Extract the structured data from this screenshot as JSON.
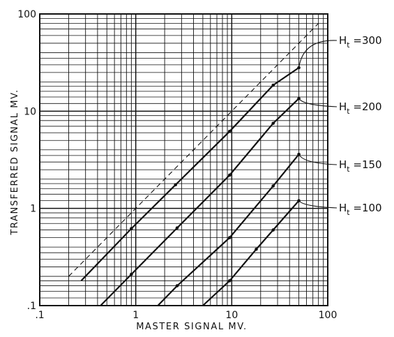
{
  "chart_data": {
    "type": "line",
    "xlabel": "MASTER SIGNAL MV.",
    "ylabel": "TRANSFERRED SIGNAL MV.",
    "x_scale": "log",
    "y_scale": "log",
    "xlim": [
      0.1,
      100
    ],
    "ylim": [
      0.1,
      100
    ],
    "grid": true,
    "x_ticks": [
      {
        "value": 0.1,
        "label": ".1"
      },
      {
        "value": 1,
        "label": "1"
      },
      {
        "value": 10,
        "label": "10"
      },
      {
        "value": 100,
        "label": "100"
      }
    ],
    "y_ticks": [
      {
        "value": 0.1,
        "label": ".1"
      },
      {
        "value": 1,
        "label": "1"
      },
      {
        "value": 10,
        "label": "10"
      },
      {
        "value": 100,
        "label": "100"
      }
    ],
    "reference_line": {
      "style": "dashed",
      "points": [
        [
          0.2,
          0.2
        ],
        [
          80,
          80
        ]
      ]
    },
    "series": [
      {
        "key": "300",
        "label_main": "H",
        "label_sub": "t",
        "label_rest": " =300",
        "points": [
          [
            0.27,
            0.18
          ],
          [
            0.9,
            0.62
          ],
          [
            2.6,
            1.75
          ],
          [
            9.5,
            6.2
          ],
          [
            27,
            18.5
          ],
          [
            50,
            28
          ]
        ]
      },
      {
        "key": "200",
        "label_main": "H",
        "label_sub": "t",
        "label_rest": " =200",
        "points": [
          [
            0.43,
            0.1
          ],
          [
            0.9,
            0.21
          ],
          [
            2.7,
            0.63
          ],
          [
            9.5,
            2.2
          ],
          [
            27,
            7.5
          ],
          [
            50,
            13.5
          ]
        ]
      },
      {
        "key": "150",
        "label_main": "H",
        "label_sub": "t",
        "label_rest": " =150",
        "points": [
          [
            1.7,
            0.1
          ],
          [
            2.7,
            0.16
          ],
          [
            9.5,
            0.5
          ],
          [
            27,
            1.7
          ],
          [
            50,
            3.6
          ]
        ]
      },
      {
        "key": "100",
        "label_main": "H",
        "label_sub": "t",
        "label_rest": " =100",
        "points": [
          [
            5.0,
            0.1
          ],
          [
            9.5,
            0.18
          ],
          [
            18,
            0.38
          ],
          [
            27,
            0.6
          ],
          [
            50,
            1.2
          ]
        ]
      }
    ]
  }
}
